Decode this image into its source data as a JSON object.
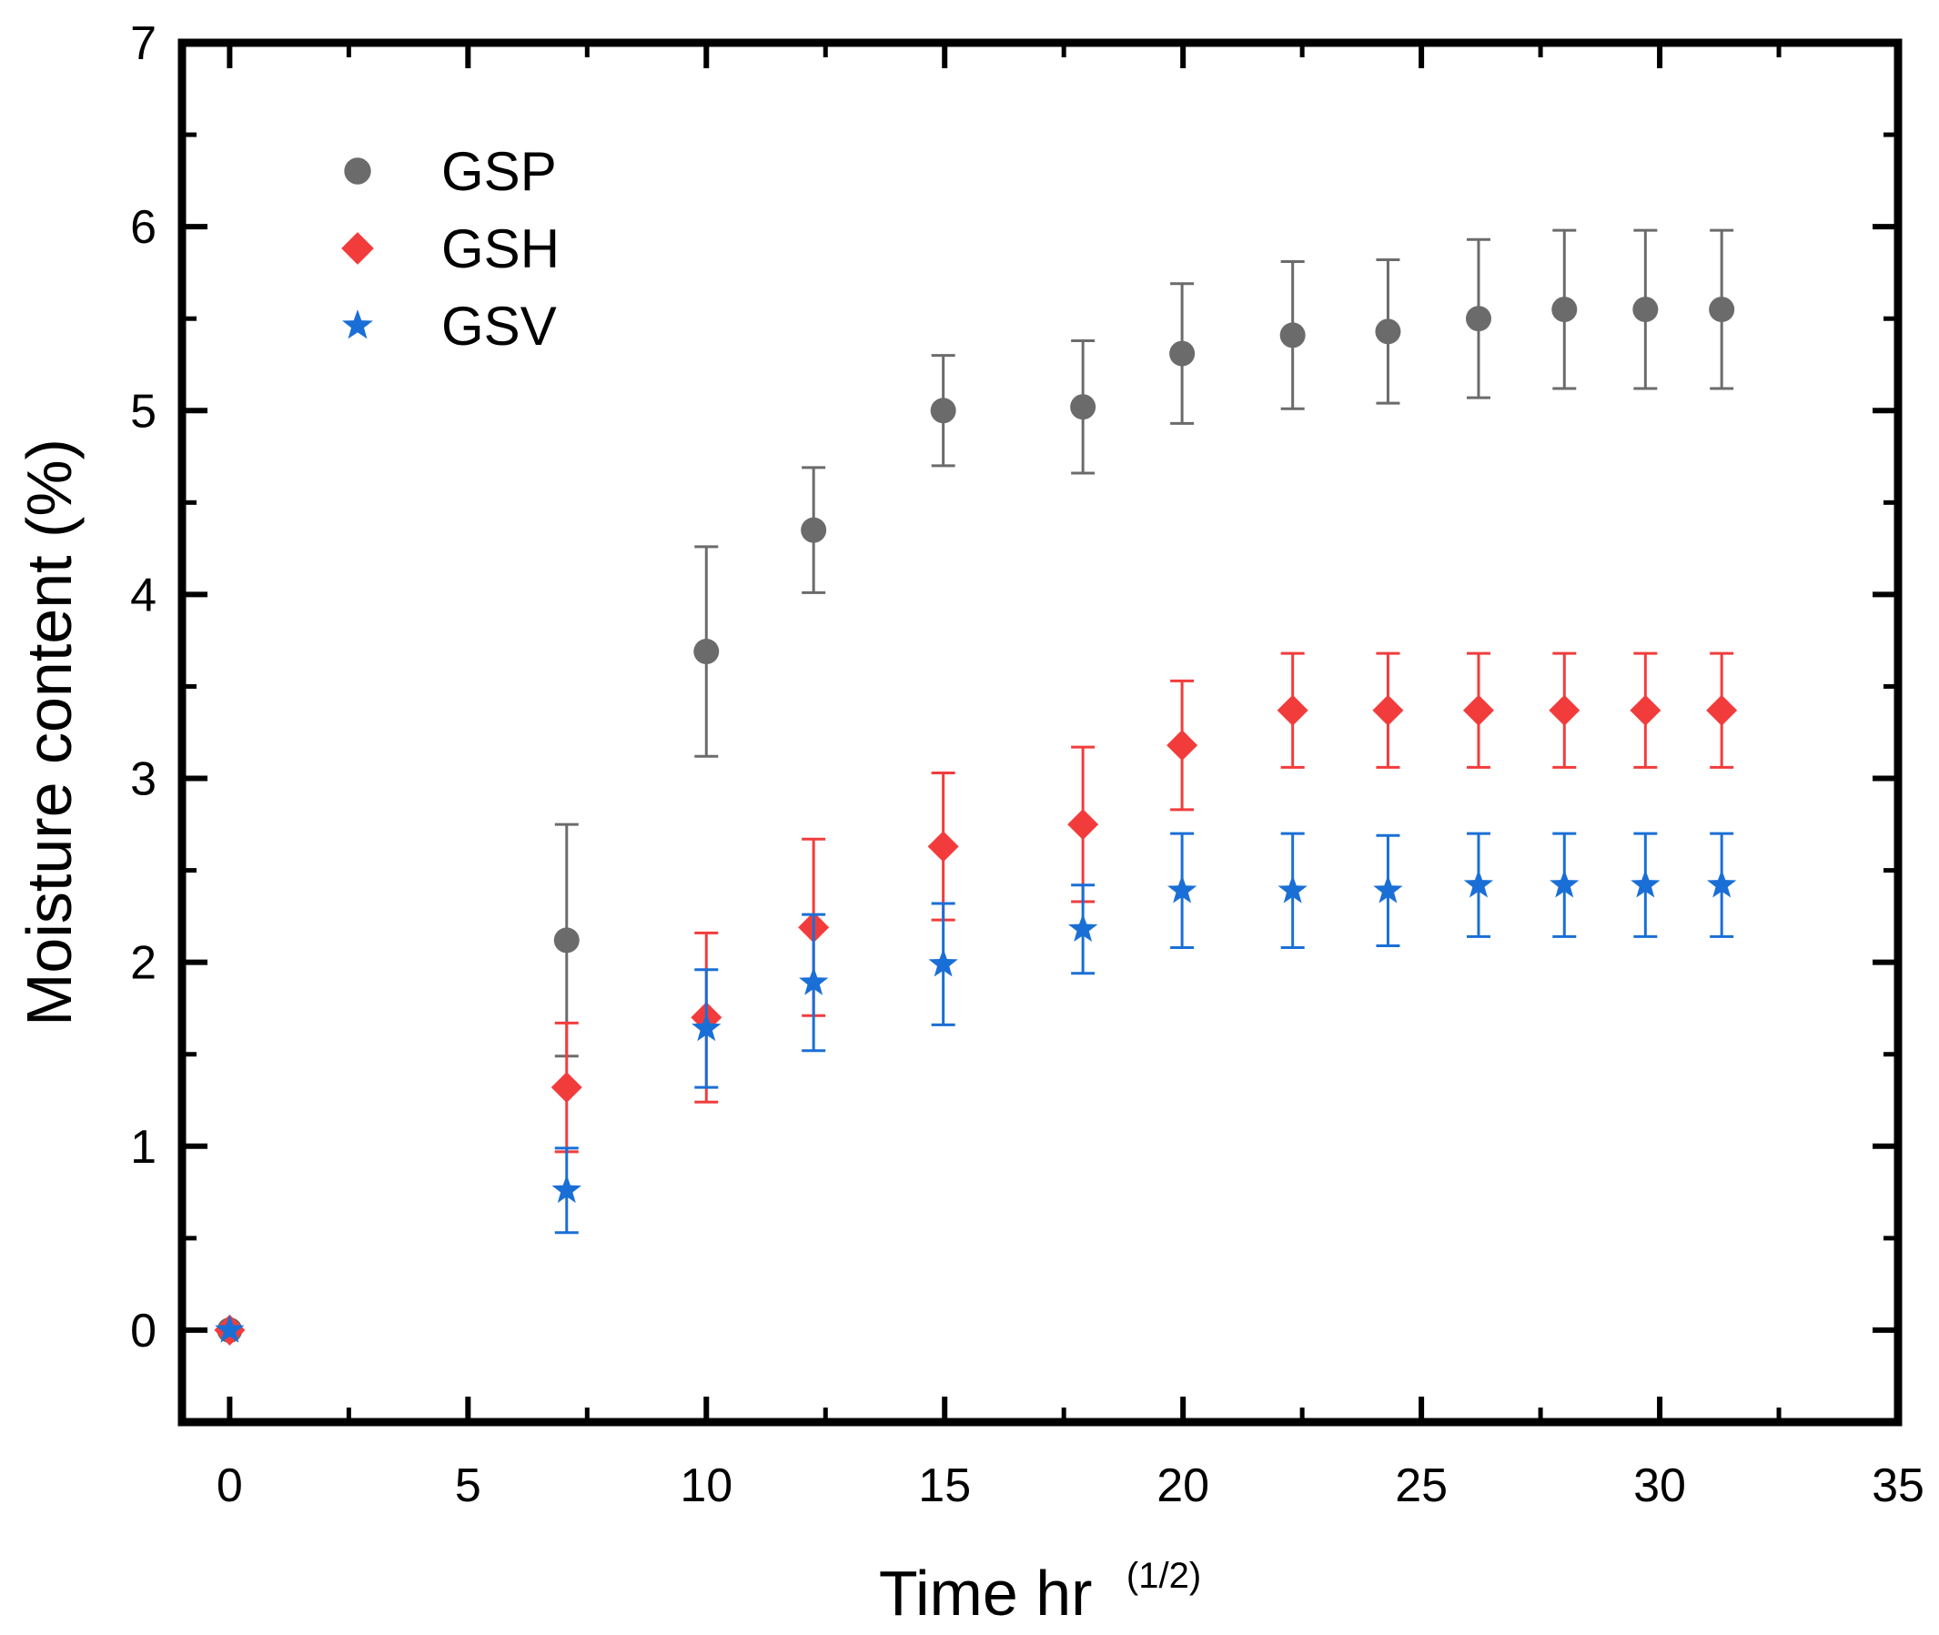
{
  "chart_data": {
    "type": "scatter",
    "title": "",
    "xlabel": "Time hr",
    "xlabel_superscript": "(1/2)",
    "ylabel": "Moisture content (%)",
    "xlim": [
      -1,
      35
    ],
    "ylim": [
      -0.5,
      7
    ],
    "xticks": [
      0,
      5,
      10,
      15,
      20,
      25,
      30,
      35
    ],
    "yticks": [
      0,
      1,
      2,
      3,
      4,
      5,
      6,
      7
    ],
    "legend_position": "top-left",
    "series": [
      {
        "name": "GSP",
        "marker": "circle",
        "color": "#6b6b6b",
        "x": [
          0,
          7.07,
          10,
          12.25,
          14.97,
          17.9,
          19.98,
          22.3,
          24.3,
          26.2,
          28.0,
          29.7,
          31.3
        ],
        "y": [
          0,
          2.12,
          3.69,
          4.35,
          5.0,
          5.02,
          5.31,
          5.41,
          5.43,
          5.5,
          5.55,
          5.55,
          5.55
        ],
        "err": [
          0,
          0.63,
          0.57,
          0.34,
          0.3,
          0.36,
          0.38,
          0.4,
          0.39,
          0.43,
          0.43,
          0.43,
          0.43
        ]
      },
      {
        "name": "GSH",
        "marker": "diamond",
        "color": "#f23c3c",
        "x": [
          0,
          7.07,
          10,
          12.25,
          14.97,
          17.9,
          19.98,
          22.3,
          24.3,
          26.2,
          28.0,
          29.7,
          31.3
        ],
        "y": [
          0,
          1.32,
          1.7,
          2.19,
          2.63,
          2.75,
          3.18,
          3.37,
          3.37,
          3.37,
          3.37,
          3.37,
          3.37
        ],
        "err": [
          0,
          0.35,
          0.46,
          0.48,
          0.4,
          0.42,
          0.35,
          0.31,
          0.31,
          0.31,
          0.31,
          0.31,
          0.31
        ]
      },
      {
        "name": "GSV",
        "marker": "star",
        "color": "#1a6fd6",
        "x": [
          0,
          7.07,
          10,
          12.25,
          14.97,
          17.9,
          19.98,
          22.3,
          24.3,
          26.2,
          28.0,
          29.7,
          31.3
        ],
        "y": [
          0,
          0.76,
          1.64,
          1.89,
          1.99,
          2.18,
          2.39,
          2.39,
          2.39,
          2.42,
          2.42,
          2.42,
          2.42
        ],
        "err": [
          0,
          0.23,
          0.32,
          0.37,
          0.33,
          0.24,
          0.31,
          0.31,
          0.3,
          0.28,
          0.28,
          0.28,
          0.28
        ]
      }
    ]
  }
}
